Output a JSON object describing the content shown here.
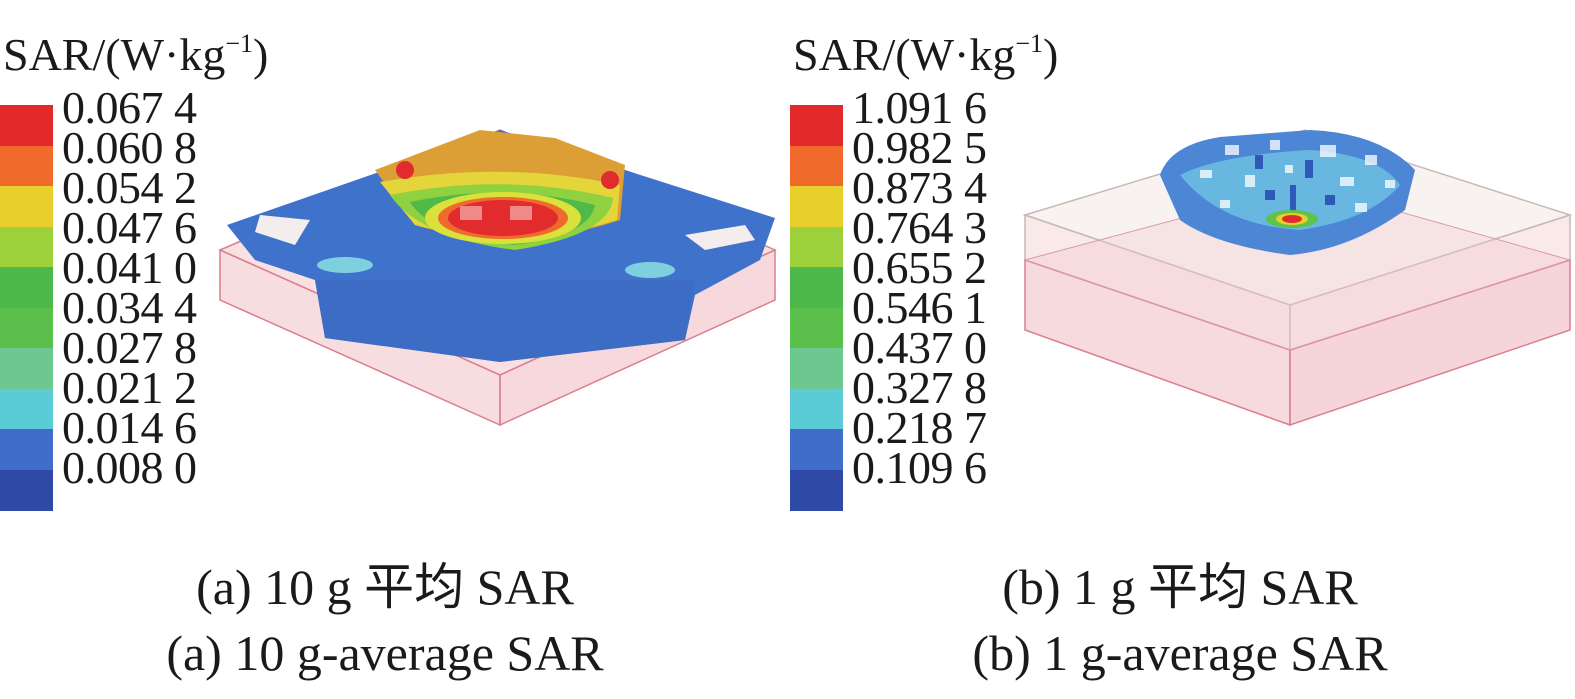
{
  "panels": [
    {
      "id": "a",
      "legend": {
        "title": "SAR/(W·kg",
        "title_sup": "−1",
        "title_close": ")",
        "ticks": [
          "0.067 4",
          "0.060 8",
          "0.054 2",
          "0.047 6",
          "0.041 0",
          "0.034 4",
          "0.027 8",
          "0.021 2",
          "0.014 6",
          "0.008 0"
        ],
        "bands": [
          "#e32a2a",
          "#f06a2b",
          "#e8cf2c",
          "#9dd13b",
          "#4db94a",
          "#5bbf4b",
          "#6cc88f",
          "#5bcbd8",
          "#3f6dc9",
          "#2f49a6"
        ]
      },
      "caption_cn": "(a) 10 g 平均 SAR",
      "caption_en": "(a) 10 g-average SAR"
    },
    {
      "id": "b",
      "legend": {
        "title": "SAR/(W·kg",
        "title_sup": "−1",
        "title_close": ")",
        "ticks": [
          "1.091 6",
          "0.982 5",
          "0.873 4",
          "0.764 3",
          "0.655 2",
          "0.546 1",
          "0.437 0",
          "0.327 8",
          "0.218 7",
          "0.109 6"
        ],
        "bands": [
          "#e32a2a",
          "#f06a2b",
          "#e8cf2c",
          "#9dd13b",
          "#4db94a",
          "#5bbf4b",
          "#6cc88f",
          "#5bcbd8",
          "#3f6dc9",
          "#2f49a6"
        ]
      },
      "caption_cn": "(b) 1 g 平均 SAR",
      "caption_en": "(b) 1 g-average SAR"
    }
  ]
}
